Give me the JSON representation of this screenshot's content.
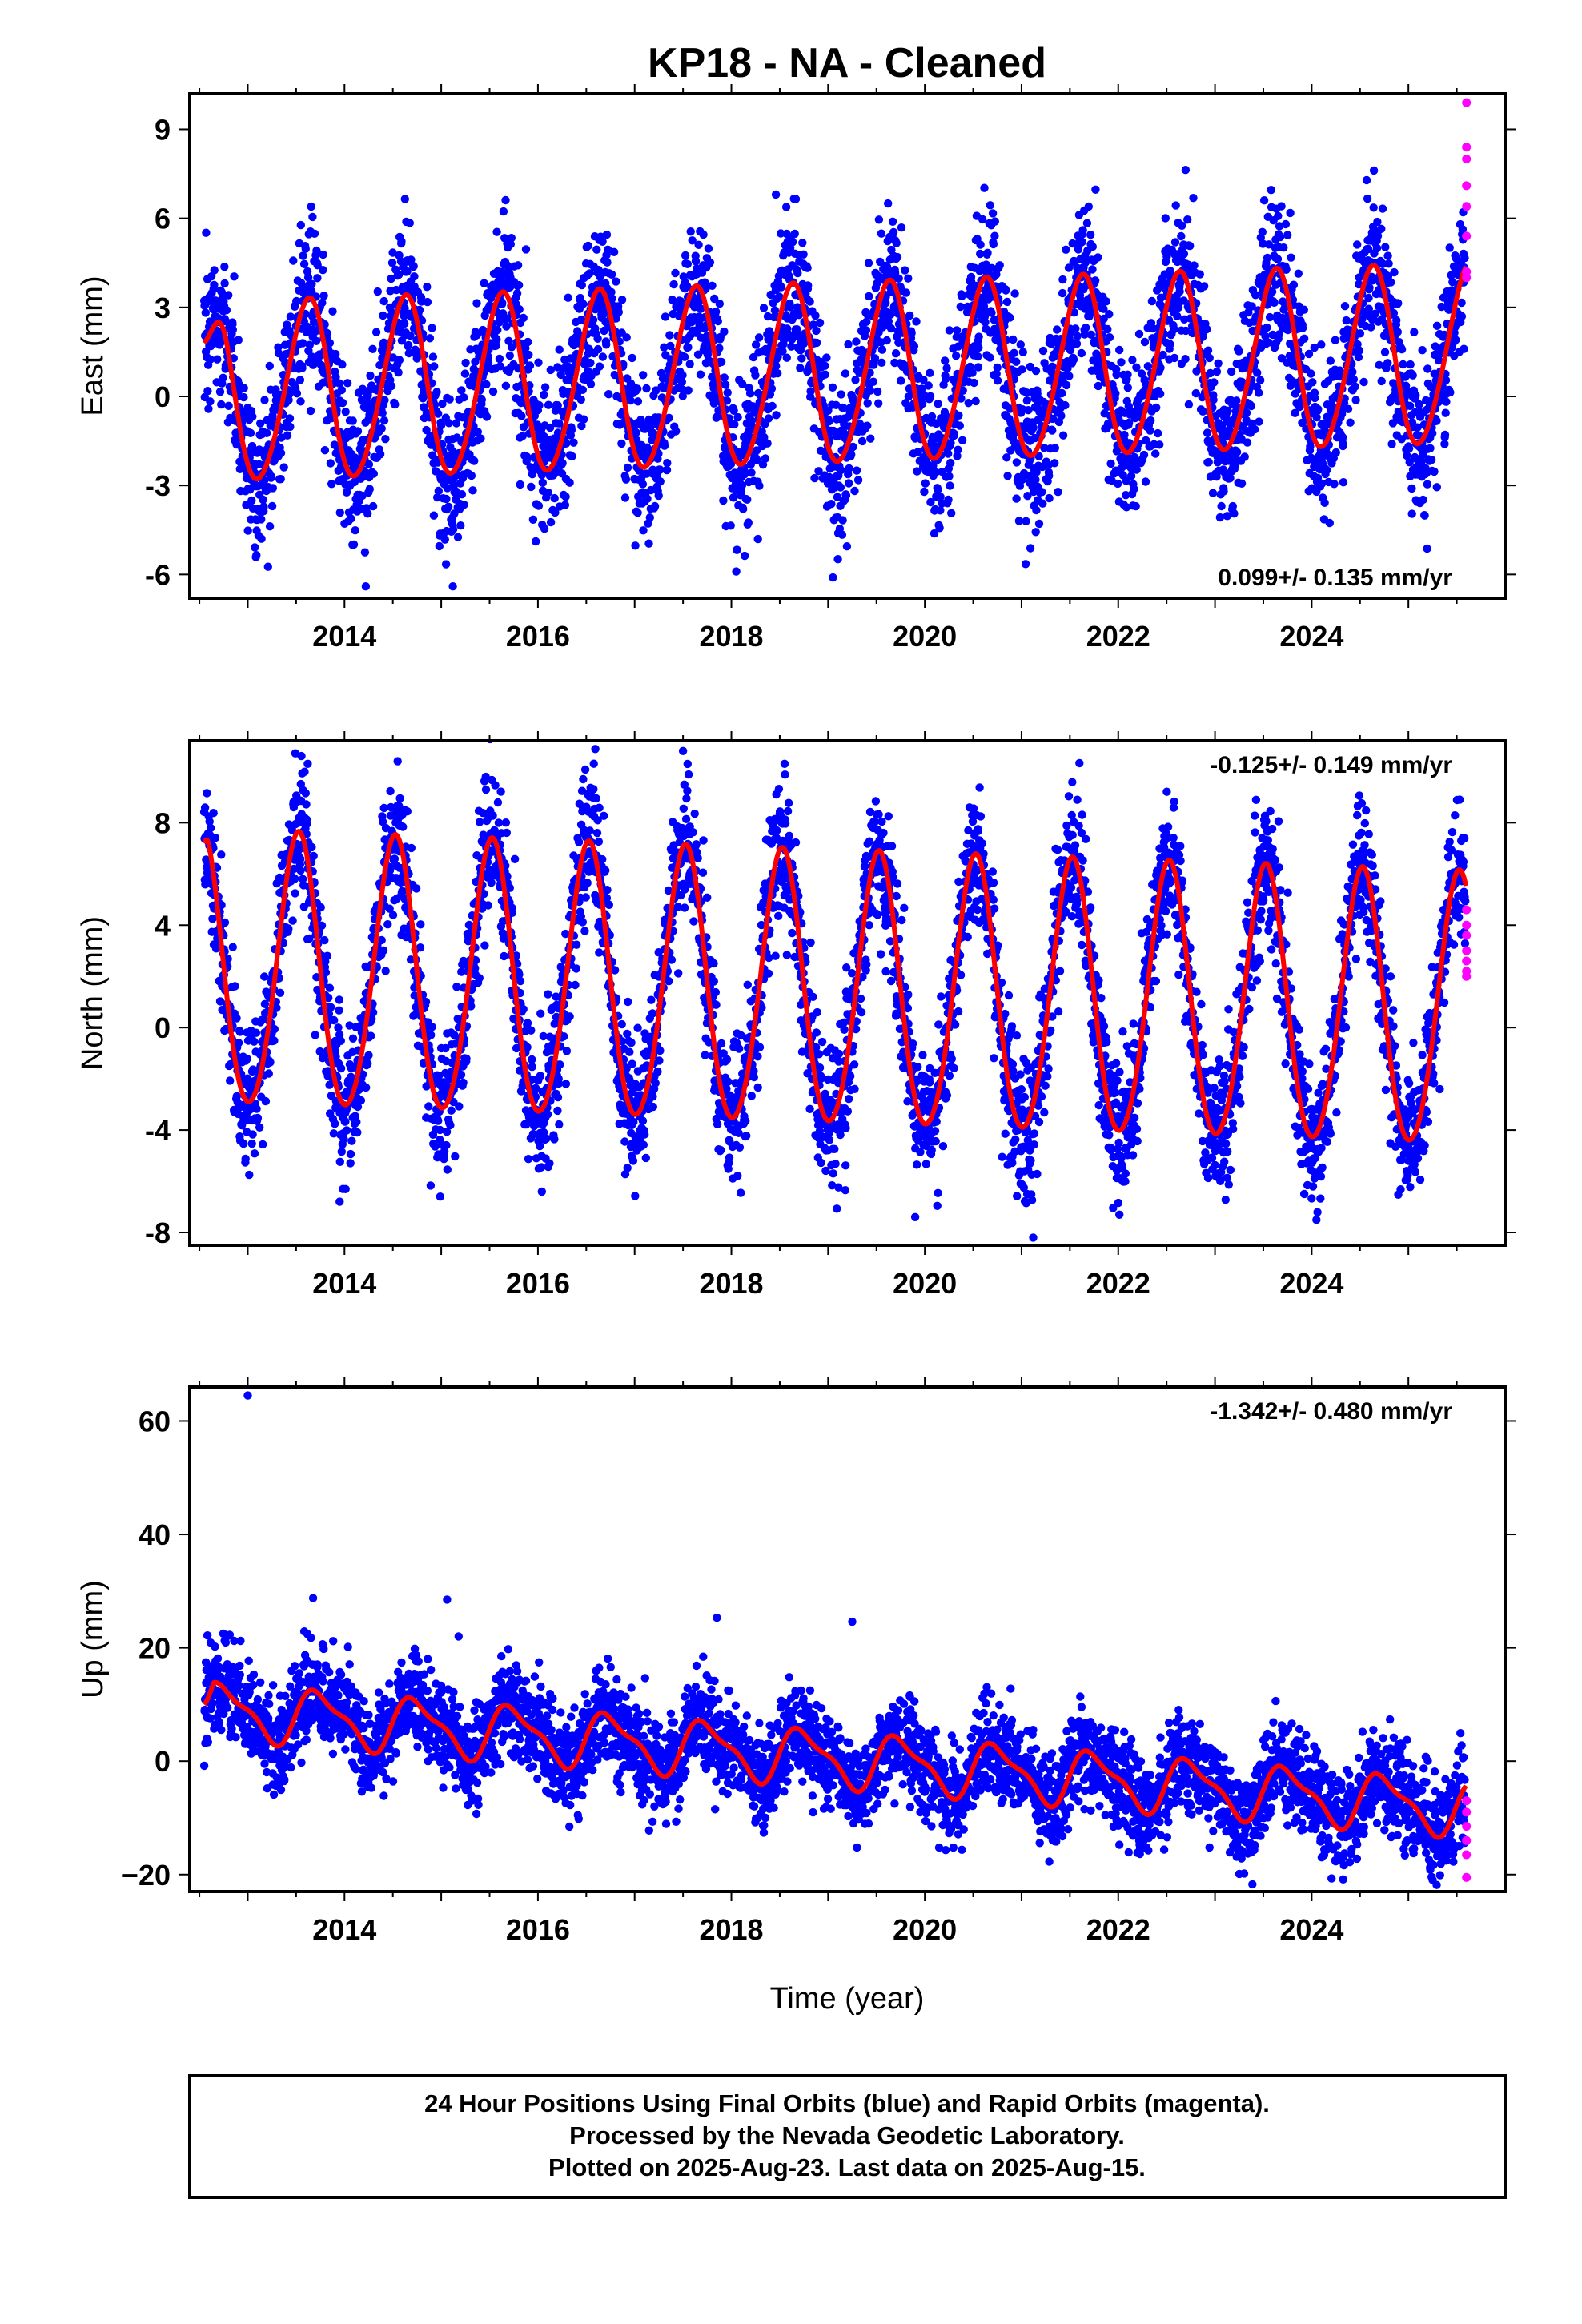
{
  "figure": {
    "title": "KP18  - NA - Cleaned",
    "xlabel": "Time (year)",
    "footer": [
      "24 Hour Positions Using Final Orbits (blue) and Rapid Orbits (magenta).",
      "Processed by the Nevada Geodetic Laboratory.",
      "Plotted on 2025-Aug-23. Last data on 2025-Aug-15."
    ]
  },
  "colors": {
    "final_orbits": "#0000ff",
    "rapid_orbits": "#ff00ff",
    "model_fit": "#ff0000",
    "frame": "#000000"
  },
  "chart_data": [
    {
      "type": "scatter",
      "name": "east",
      "ylabel": "East (mm)",
      "xlim": [
        2012.4,
        2026.0
      ],
      "ylim": [
        -6.8,
        10.2
      ],
      "x_ticks": [
        2014,
        2016,
        2018,
        2020,
        2022,
        2024
      ],
      "x_tick_labels": [
        "2014",
        "2016",
        "2018",
        "2020",
        "2022",
        "2024"
      ],
      "y_ticks": [
        -6,
        -3,
        0,
        3,
        6,
        9
      ],
      "y_tick_labels": [
        "-6",
        "-3",
        "0",
        "3",
        "6",
        "9"
      ],
      "rate_label": "0.099+/- 0.135 mm/yr",
      "rate_position": "bottom-right",
      "model": {
        "rate": 0.099,
        "ref_epoch": 2019.0,
        "offset": 0.7,
        "annual_amp": 3.0,
        "annual_peak": 0.62,
        "semiannual_amp": 0.25,
        "semiannual_peak": 0.2,
        "start_value": 1.8,
        "start_decay": 0.25
      },
      "scatter_sigma": 1.3,
      "spikes": [
        [
          2014.22,
          -6.4
        ],
        [
          2015.12,
          -6.4
        ],
        [
          2018.46,
          6.8
        ],
        [
          2019.62,
          6.5
        ],
        [
          2019.05,
          -6.1
        ],
        [
          2018.05,
          -5.9
        ]
      ],
      "rapid_points": [
        [
          2025.6,
          9.9
        ],
        [
          2025.6,
          8.4
        ],
        [
          2025.6,
          8.0
        ],
        [
          2025.6,
          7.1
        ],
        [
          2025.6,
          6.4
        ],
        [
          2025.6,
          5.4
        ],
        [
          2025.6,
          4.2
        ],
        [
          2025.6,
          4.0
        ]
      ],
      "grid": false,
      "legend": "none"
    },
    {
      "type": "scatter",
      "name": "north",
      "ylabel": "North (mm)",
      "xlim": [
        2012.4,
        2026.0
      ],
      "ylim": [
        -8.5,
        11.2
      ],
      "x_ticks": [
        2014,
        2016,
        2018,
        2020,
        2022,
        2024
      ],
      "x_tick_labels": [
        "2014",
        "2016",
        "2018",
        "2020",
        "2022",
        "2024"
      ],
      "y_ticks": [
        -8,
        -4,
        0,
        4,
        8
      ],
      "y_tick_labels": [
        "-8",
        "-4",
        "0",
        "4",
        "8"
      ],
      "rate_label": "-0.125+/- 0.149 mm/yr",
      "rate_position": "top-right",
      "model": {
        "rate": -0.125,
        "ref_epoch": 2019.0,
        "offset": 1.3,
        "annual_amp": 5.3,
        "annual_peak": 0.52,
        "semiannual_amp": 0.4,
        "semiannual_peak": 0.05,
        "start_value": 7.2,
        "start_decay": 0.05
      },
      "scatter_sigma": 1.35,
      "spikes": [
        [
          2014.55,
          10.4
        ],
        [
          2017.5,
          10.8
        ],
        [
          2018.55,
          10.3
        ],
        [
          2013.62,
          10.3
        ],
        [
          2021.12,
          -8.2
        ],
        [
          2013.95,
          -6.8
        ],
        [
          2019.9,
          -7.4
        ]
      ],
      "rapid_points": [
        [
          2025.6,
          4.6
        ],
        [
          2025.6,
          4.0
        ],
        [
          2025.6,
          3.6
        ],
        [
          2025.6,
          3.0
        ],
        [
          2025.6,
          2.6
        ],
        [
          2025.6,
          2.2
        ],
        [
          2025.6,
          2.0
        ]
      ],
      "grid": false,
      "legend": "none"
    },
    {
      "type": "scatter",
      "name": "up",
      "ylabel": "Up (mm)",
      "xlim": [
        2012.4,
        2026.0
      ],
      "ylim": [
        -23,
        66
      ],
      "x_ticks": [
        2014,
        2016,
        2018,
        2020,
        2022,
        2024
      ],
      "x_tick_labels": [
        "2014",
        "2016",
        "2018",
        "2020",
        "2022",
        "2024"
      ],
      "y_ticks": [
        -20,
        0,
        20,
        40,
        60
      ],
      "y_tick_labels": [
        "−20",
        "0",
        "20",
        "40",
        "60"
      ],
      "rate_label": "-1.342+/- 0.480 mm/yr",
      "rate_position": "top-right",
      "model": {
        "rate": -1.342,
        "ref_epoch": 2019.0,
        "offset": 0.5,
        "annual_amp": 4.5,
        "annual_peak": 0.75,
        "semiannual_amp": 1.5,
        "semiannual_peak": 0.1,
        "start_value": 10.0,
        "start_decay": 0.1
      },
      "scatter_sigma": 4.2,
      "spikes": [
        [
          2013.0,
          64.5
        ],
        [
          2015.06,
          28.5
        ],
        [
          2017.85,
          25.3
        ],
        [
          2019.25,
          24.6
        ],
        [
          2015.18,
          22.0
        ]
      ],
      "rapid_points": [
        [
          2025.6,
          -7.0
        ],
        [
          2025.6,
          -9.0
        ],
        [
          2025.6,
          -11.5
        ],
        [
          2025.6,
          -14.0
        ],
        [
          2025.6,
          -16.5
        ],
        [
          2025.6,
          -20.5
        ]
      ],
      "grid": false,
      "legend": "none"
    }
  ]
}
